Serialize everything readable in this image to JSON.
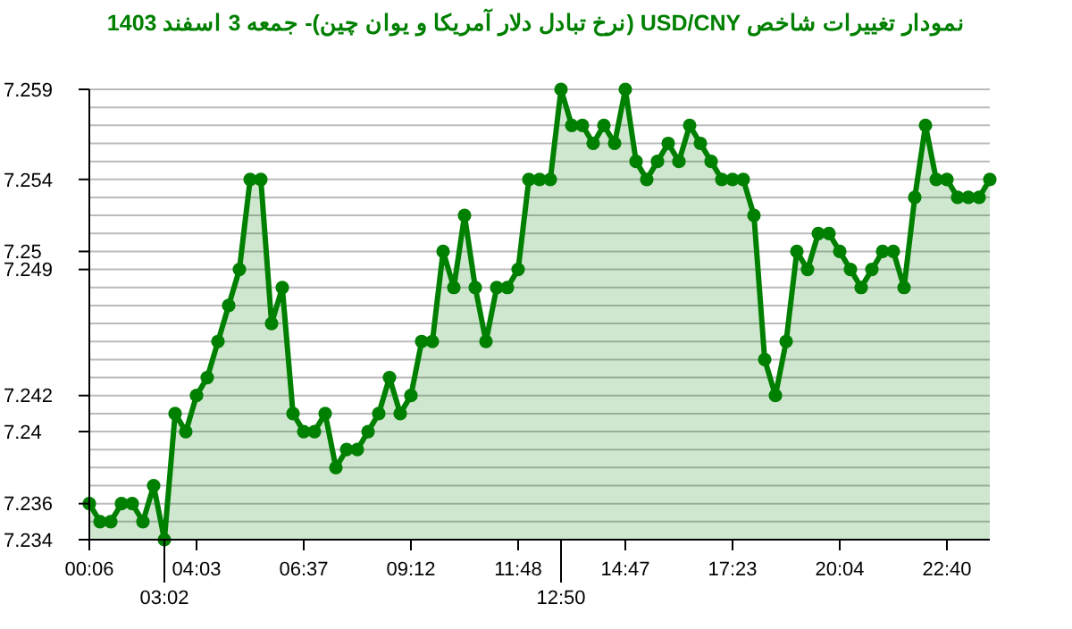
{
  "chart_data": {
    "type": "area",
    "title": "نمودار تغییرات شاخص USD/CNY (نرخ تبادل دلار آمریکا و یوان چین)- جمعه  3 اسفند 1403",
    "categories": [
      "00:06",
      null,
      null,
      null,
      null,
      null,
      null,
      "03:02",
      null,
      null,
      "04:03",
      null,
      null,
      null,
      null,
      null,
      null,
      null,
      null,
      null,
      "06:37",
      null,
      null,
      null,
      null,
      null,
      null,
      null,
      null,
      null,
      "09:12",
      null,
      null,
      null,
      null,
      null,
      null,
      null,
      null,
      null,
      "11:48",
      null,
      null,
      null,
      "12:50",
      null,
      null,
      null,
      null,
      null,
      "14:47",
      null,
      null,
      null,
      null,
      null,
      null,
      null,
      null,
      null,
      "17:23",
      null,
      null,
      null,
      null,
      null,
      null,
      null,
      null,
      null,
      "20:04",
      null,
      null,
      null,
      null,
      null,
      null,
      null,
      null,
      null,
      "22:40",
      null,
      null,
      null,
      null
    ],
    "series": [
      {
        "color": "#008000",
        "values": [
          7.236,
          7.235,
          7.235,
          7.236,
          7.236,
          7.235,
          7.237,
          7.234,
          7.241,
          7.24,
          7.242,
          7.243,
          7.245,
          7.247,
          7.249,
          7.254,
          7.254,
          7.246,
          7.248,
          7.241,
          7.24,
          7.24,
          7.241,
          7.238,
          7.239,
          7.239,
          7.24,
          7.241,
          7.243,
          7.241,
          7.242,
          7.245,
          7.245,
          7.25,
          7.248,
          7.252,
          7.248,
          7.245,
          7.248,
          7.248,
          7.249,
          7.254,
          7.254,
          7.254,
          7.259,
          7.257,
          7.257,
          7.256,
          7.257,
          7.256,
          7.259,
          7.255,
          7.254,
          7.255,
          7.256,
          7.255,
          7.257,
          7.256,
          7.255,
          7.254,
          7.254,
          7.254,
          7.252,
          7.244,
          7.242,
          7.245,
          7.25,
          7.249,
          7.251,
          7.251,
          7.25,
          7.249,
          7.248,
          7.249,
          7.25,
          7.25,
          7.248,
          7.253,
          7.257,
          7.254,
          7.254,
          7.253,
          7.253,
          7.253,
          7.254
        ]
      }
    ],
    "ylim": [
      7.234,
      7.259
    ],
    "yticks": [
      7.234,
      {
        "value": 7.235,
        "label": null
      },
      7.236,
      {
        "value": 7.237,
        "label": null
      },
      {
        "value": 7.238,
        "label": null
      },
      {
        "value": 7.239,
        "label": null
      },
      7.24,
      {
        "value": 7.241,
        "label": null
      },
      7.242,
      {
        "value": 7.243,
        "label": null
      },
      {
        "value": 7.244,
        "label": null
      },
      {
        "value": 7.245,
        "label": null
      },
      {
        "value": 7.246,
        "label": null
      },
      {
        "value": 7.247,
        "label": null
      },
      {
        "value": 7.248,
        "label": null
      },
      7.249,
      7.25,
      {
        "value": 7.251,
        "label": null
      },
      {
        "value": 7.252,
        "label": null
      },
      {
        "value": 7.253,
        "label": null
      },
      7.254,
      {
        "value": 7.255,
        "label": null
      },
      {
        "value": 7.256,
        "label": null
      },
      {
        "value": 7.257,
        "label": null
      },
      {
        "value": 7.258,
        "label": null
      },
      7.259
    ],
    "grid": "y",
    "marker": "circle"
  }
}
